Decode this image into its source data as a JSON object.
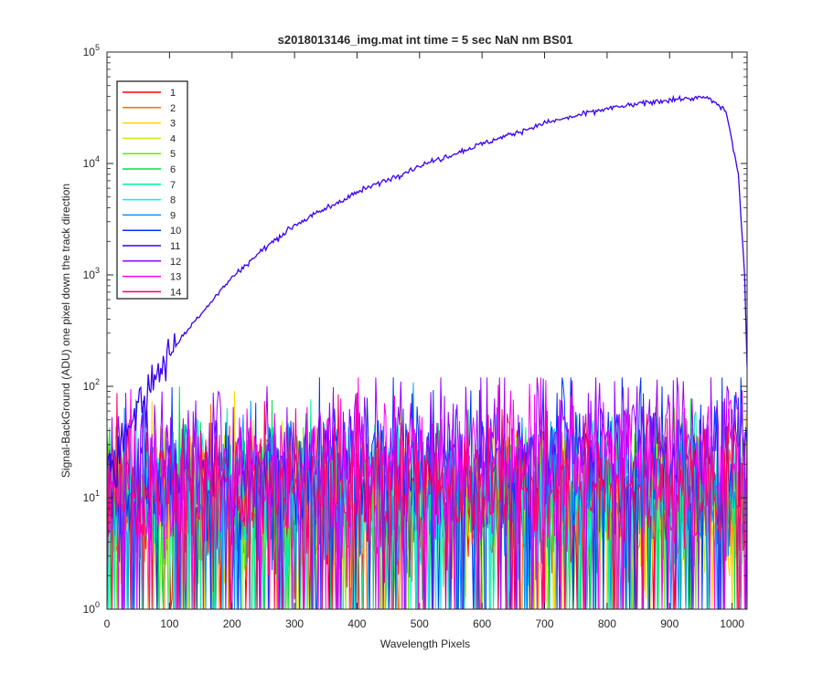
{
  "chart_data": {
    "type": "line",
    "title": "s2018013146_img.mat int time = 5 sec  NaN nm BS01",
    "xlabel": "Wavelength Pixels",
    "ylabel": "Signal-BackGround (ADU) one pixel down the track direction",
    "xlim": [
      0,
      1024
    ],
    "ylim": [
      1,
      100000
    ],
    "yscale": "log",
    "x_ticks": [
      "0",
      "100",
      "200",
      "300",
      "400",
      "500",
      "600",
      "700",
      "800",
      "900",
      "1000"
    ],
    "y_tick_exponents": [
      "0",
      "1",
      "2",
      "3",
      "4",
      "5"
    ],
    "y_tick_base": "10",
    "legend_location": "top-left",
    "series": [
      {
        "name": "1",
        "color": "#ff0000",
        "level": "noise",
        "typical": 8
      },
      {
        "name": "2",
        "color": "#ff6e00",
        "level": "noise",
        "typical": 9
      },
      {
        "name": "3",
        "color": "#ffd400",
        "level": "noise",
        "typical": 9
      },
      {
        "name": "4",
        "color": "#c8f000",
        "level": "noise",
        "typical": 10
      },
      {
        "name": "5",
        "color": "#60f000",
        "level": "noise",
        "typical": 10
      },
      {
        "name": "6",
        "color": "#00e04a",
        "level": "noise",
        "typical": 11
      },
      {
        "name": "7",
        "color": "#00f0a8",
        "level": "noise",
        "typical": 11
      },
      {
        "name": "8",
        "color": "#00f0f0",
        "level": "noise",
        "typical": 12
      },
      {
        "name": "9",
        "color": "#0096ff",
        "level": "noise",
        "typical": 13
      },
      {
        "name": "10",
        "color": "#0033ff",
        "level": "noise",
        "typical": 22
      },
      {
        "name": "11",
        "color": "#3a00f0",
        "level": "signal",
        "x": [
          0,
          20,
          40,
          60,
          80,
          100,
          150,
          200,
          250,
          300,
          400,
          500,
          600,
          700,
          800,
          900,
          960,
          990,
          1010,
          1020,
          1024
        ],
        "y": [
          20,
          30,
          50,
          80,
          130,
          200,
          450,
          950,
          1700,
          2800,
          5500,
          9500,
          15000,
          23000,
          31000,
          37500,
          39000,
          30000,
          8000,
          1000,
          150
        ]
      },
      {
        "name": "12",
        "color": "#9a00ff",
        "level": "noise",
        "typical": 30
      },
      {
        "name": "13",
        "color": "#ff00f0",
        "level": "noise",
        "typical": 20
      },
      {
        "name": "14",
        "color": "#ff0060",
        "level": "noise",
        "typical": 12
      }
    ]
  }
}
